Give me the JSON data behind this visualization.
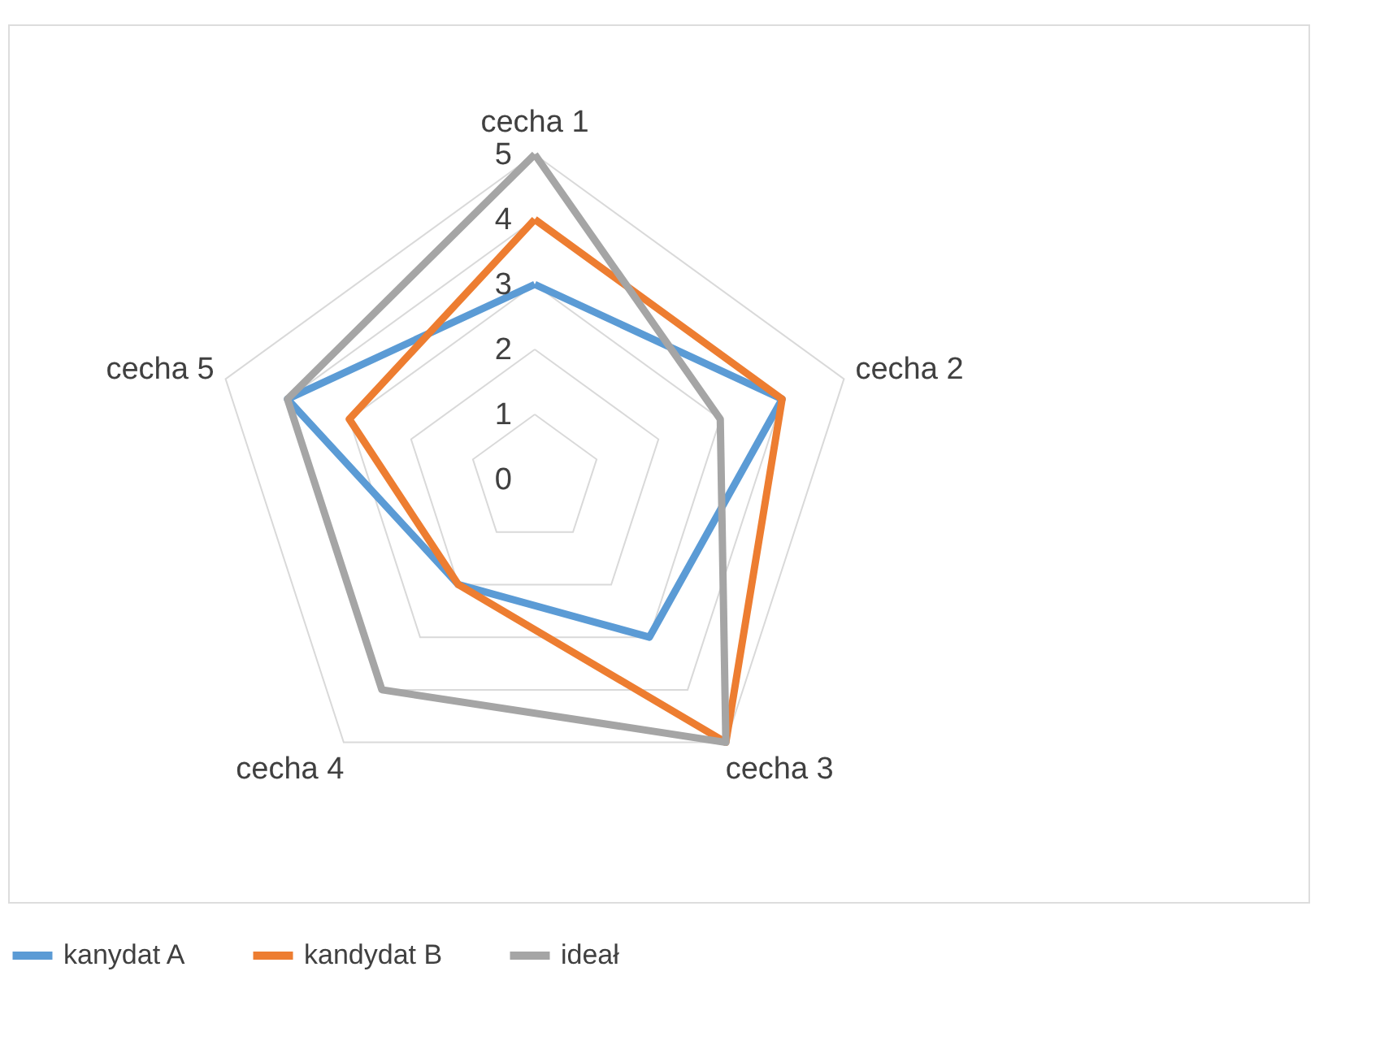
{
  "chart_data": {
    "type": "radar",
    "categories": [
      "cecha 1",
      "cecha 2",
      "cecha 3",
      "cecha 4",
      "cecha 5"
    ],
    "series": [
      {
        "name": "kanydat A",
        "color": "#5b9bd5",
        "values": [
          3,
          4,
          3,
          2,
          4
        ]
      },
      {
        "name": "kandydat B",
        "color": "#ed7d31",
        "values": [
          4,
          4,
          5,
          2,
          3
        ]
      },
      {
        "name": "ideał",
        "color": "#a5a5a5",
        "values": [
          5,
          3,
          5,
          4,
          4
        ]
      }
    ],
    "ylim": [
      0,
      5
    ],
    "yticks": [
      0,
      1,
      2,
      3,
      4,
      5
    ],
    "grid": true,
    "legend": "bottom"
  }
}
